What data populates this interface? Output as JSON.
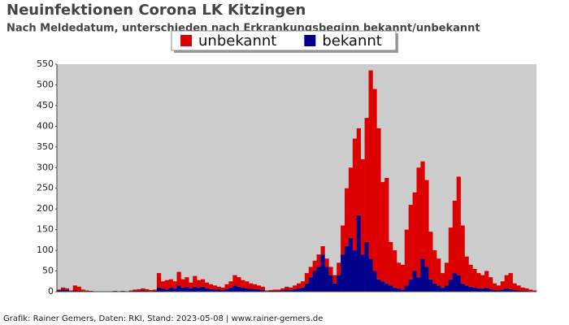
{
  "chart_data": {
    "type": "stacked_bar",
    "title": "Neuinfektionen Corona LK Kitzingen",
    "subtitle": "Nach Meldedatum, unterschieden nach Erkrankungsbeginn bekannt/unbekannt",
    "footer": "Grafik: Rainer Gemers, Daten: RKI, Stand: 2023-05-08 | www.rainer-gemers.de",
    "categories": [
      null,
      null,
      null,
      null,
      null,
      null,
      null,
      null,
      null,
      null,
      null,
      null,
      null,
      null,
      null,
      null,
      null,
      null,
      null,
      null,
      null,
      null,
      null,
      null,
      null,
      null,
      null,
      null,
      null,
      null,
      null,
      null,
      null,
      null,
      null,
      null,
      null,
      null,
      null,
      null,
      null,
      null,
      null,
      null,
      null,
      null,
      null,
      null,
      null,
      null,
      null,
      null,
      null,
      null,
      null,
      null,
      null,
      null,
      null,
      null,
      null,
      null,
      null,
      null,
      null,
      null,
      null,
      null,
      null,
      null,
      null,
      null,
      null,
      null,
      null,
      null,
      null,
      null,
      null,
      null,
      null,
      null,
      null,
      null,
      null,
      null,
      null,
      null,
      null,
      null,
      null,
      null,
      null,
      null,
      null,
      null,
      null,
      null,
      null,
      null,
      null,
      null,
      null,
      null,
      null,
      null,
      null,
      null,
      null,
      null,
      null,
      null,
      null,
      null,
      null,
      null,
      null,
      null,
      null,
      null
    ],
    "series": [
      {
        "name": "unbekannt",
        "color": "#dd0000",
        "values": [
          2,
          5,
          4,
          2,
          12,
          10,
          4,
          2,
          2,
          1,
          0,
          0,
          0,
          0,
          1,
          1,
          1,
          0,
          2,
          3,
          4,
          5,
          4,
          3,
          3,
          35,
          17,
          23,
          20,
          17,
          33,
          20,
          23,
          14,
          26,
          18,
          18,
          14,
          12,
          10,
          7,
          6,
          12,
          15,
          25,
          23,
          18,
          17,
          13,
          12,
          10,
          8,
          2,
          2,
          3,
          3,
          5,
          7,
          6,
          9,
          12,
          15,
          25,
          25,
          25,
          30,
          20,
          20,
          20,
          20,
          30,
          70,
          140,
          170,
          270,
          210,
          230,
          300,
          455,
          440,
          365,
          240,
          255,
          105,
          90,
          62,
          60,
          135,
          180,
          190,
          265,
          235,
          210,
          115,
          80,
          65,
          35,
          55,
          125,
          175,
          238,
          140,
          70,
          53,
          45,
          37,
          32,
          40,
          29,
          16,
          12,
          20,
          32,
          39,
          16,
          12,
          8,
          6,
          4,
          2
        ]
      },
      {
        "name": "bekannt",
        "color": "#00008b",
        "values": [
          3,
          5,
          4,
          1,
          3,
          2,
          1,
          1,
          0,
          0,
          0,
          0,
          0,
          1,
          1,
          0,
          1,
          0,
          1,
          2,
          2,
          3,
          2,
          1,
          2,
          10,
          8,
          5,
          10,
          8,
          15,
          10,
          12,
          8,
          12,
          10,
          12,
          8,
          6,
          5,
          5,
          4,
          6,
          10,
          15,
          12,
          10,
          8,
          7,
          6,
          5,
          4,
          1,
          2,
          2,
          2,
          3,
          5,
          4,
          6,
          8,
          10,
          20,
          35,
          50,
          60,
          90,
          60,
          40,
          20,
          40,
          90,
          110,
          130,
          100,
          185,
          90,
          120,
          80,
          50,
          30,
          25,
          20,
          15,
          10,
          8,
          5,
          15,
          30,
          50,
          35,
          80,
          60,
          30,
          20,
          15,
          10,
          15,
          30,
          45,
          40,
          20,
          15,
          12,
          10,
          8,
          8,
          10,
          6,
          4,
          3,
          5,
          8,
          6,
          4,
          3,
          2,
          2,
          1,
          1
        ]
      }
    ],
    "stack_order": [
      1,
      0
    ],
    "ylim": [
      0,
      550
    ],
    "yticks": [
      0,
      50,
      100,
      150,
      200,
      250,
      300,
      350,
      400,
      450,
      500,
      550
    ],
    "background": "#cccccc"
  }
}
